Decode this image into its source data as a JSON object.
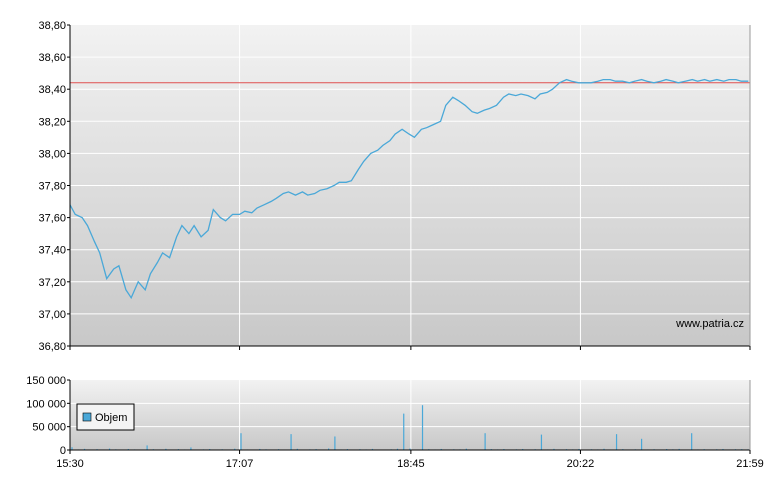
{
  "watermark": "www.patria.cz",
  "colors": {
    "price_line": "#4aa8d8",
    "reference_line": "#e05050",
    "volume_bar": "#4aa8d8",
    "grid": "#ffffff",
    "axis": "#000000",
    "panel_top": "#f2f2f2",
    "panel_bottom": "#c8c8c8"
  },
  "chart_data": [
    {
      "type": "line",
      "title": "",
      "x_tick_labels": [
        "15:30",
        "17:07",
        "18:45",
        "20:22",
        "21:59"
      ],
      "y_tick_labels": [
        "36,80",
        "37,00",
        "37,20",
        "37,40",
        "37,60",
        "37,80",
        "38,00",
        "38,20",
        "38,40",
        "38,60",
        "38,80"
      ],
      "ylim": [
        36.8,
        38.8
      ],
      "grid": true,
      "reference_line": 38.44,
      "series": [
        {
          "x": [
            "15:30",
            "15:33",
            "15:37",
            "15:40",
            "15:44",
            "15:47",
            "15:51",
            "15:55",
            "15:58",
            "16:02",
            "16:05",
            "16:09",
            "16:13",
            "16:16",
            "16:20",
            "16:23",
            "16:27",
            "16:31",
            "16:34",
            "16:38",
            "16:41",
            "16:45",
            "16:49",
            "16:52",
            "16:56",
            "16:59",
            "17:03",
            "17:07",
            "17:10",
            "17:14",
            "17:17",
            "17:21",
            "17:25",
            "17:28",
            "17:32",
            "17:35",
            "17:39",
            "17:43",
            "17:46",
            "17:50",
            "17:53",
            "17:57",
            "18:01",
            "18:04",
            "18:08",
            "18:11",
            "18:15",
            "18:18",
            "18:22",
            "18:26",
            "18:29",
            "18:33",
            "18:36",
            "18:40",
            "18:44",
            "18:47",
            "18:51",
            "18:54",
            "18:58",
            "19:02",
            "19:05",
            "19:09",
            "19:12",
            "19:16",
            "19:20",
            "19:23",
            "19:27",
            "19:30",
            "19:34",
            "19:38",
            "19:41",
            "19:45",
            "19:48",
            "19:52",
            "19:56",
            "19:59",
            "20:03",
            "20:06",
            "20:10",
            "20:14",
            "20:17",
            "20:21",
            "20:24",
            "20:28",
            "20:32",
            "20:35",
            "20:39",
            "20:42",
            "20:46",
            "20:50",
            "20:53",
            "20:57",
            "21:00",
            "21:04",
            "21:08",
            "21:11",
            "21:15",
            "21:18",
            "21:22",
            "21:26",
            "21:29",
            "21:33",
            "21:36",
            "21:40",
            "21:44",
            "21:47",
            "21:51",
            "21:54",
            "21:58"
          ],
          "values": [
            37.68,
            37.62,
            37.6,
            37.55,
            37.45,
            37.38,
            37.22,
            37.28,
            37.3,
            37.15,
            37.1,
            37.2,
            37.15,
            37.25,
            37.32,
            37.38,
            37.35,
            37.48,
            37.55,
            37.5,
            37.55,
            37.48,
            37.52,
            37.65,
            37.6,
            37.58,
            37.62,
            37.62,
            37.64,
            37.63,
            37.66,
            37.68,
            37.7,
            37.72,
            37.75,
            37.76,
            37.74,
            37.76,
            37.74,
            37.75,
            37.77,
            37.78,
            37.8,
            37.82,
            37.82,
            37.83,
            37.9,
            37.95,
            38.0,
            38.02,
            38.05,
            38.08,
            38.12,
            38.15,
            38.12,
            38.1,
            38.15,
            38.16,
            38.18,
            38.2,
            38.3,
            38.35,
            38.33,
            38.3,
            38.26,
            38.25,
            38.27,
            38.28,
            38.3,
            38.35,
            38.37,
            38.36,
            38.37,
            38.36,
            38.34,
            38.37,
            38.38,
            38.4,
            38.44,
            38.46,
            38.45,
            38.44,
            38.44,
            38.44,
            38.45,
            38.46,
            38.46,
            38.45,
            38.45,
            38.44,
            38.45,
            38.46,
            38.45,
            38.44,
            38.45,
            38.46,
            38.45,
            38.44,
            38.45,
            38.46,
            38.45,
            38.46,
            38.45,
            38.46,
            38.45,
            38.46,
            38.46,
            38.45,
            38.45
          ]
        }
      ]
    },
    {
      "type": "bar",
      "title": "",
      "x_tick_labels": [
        "15:30",
        "17:07",
        "18:45",
        "20:22",
        "21:59"
      ],
      "y_tick_labels": [
        "0",
        "50 000",
        "100 000",
        "150 000"
      ],
      "ylim": [
        0,
        150000
      ],
      "grid": true,
      "legend": {
        "entries": [
          "Objem"
        ],
        "placement": "left"
      },
      "series": [
        {
          "name": "Objem",
          "values": [
            6000,
            1200,
            2500,
            900,
            1800,
            700,
            3100,
            1500,
            800,
            2200,
            1300,
            600,
            9800,
            1700,
            1100,
            2600,
            800,
            1900,
            1200,
            5500,
            900,
            1400,
            2100,
            700,
            1600,
            1000,
            2800,
            36000,
            1200,
            900,
            2300,
            1500,
            700,
            1800,
            1100,
            34000,
            2600,
            800,
            1400,
            1900,
            700,
            3300,
            29000,
            1200,
            2000,
            900,
            1700,
            1300,
            2400,
            800,
            1100,
            1500,
            2700,
            78000,
            3200,
            1000,
            96000,
            1800,
            1200,
            2300,
            900,
            1600,
            1400,
            2800,
            1100,
            700,
            36000,
            1900,
            1300,
            2100,
            800,
            1500,
            2200,
            900,
            1700,
            33000,
            1200,
            2500,
            1000,
            1800,
            1400,
            2200,
            900,
            1600,
            1300,
            2700,
            1100,
            34000,
            1900,
            800,
            1500,
            24000,
            1200,
            1700,
            900,
            2100,
            1500,
            2400,
            1000,
            36000,
            1300,
            1800,
            900,
            1600,
            2200,
            1100,
            1700,
            1900,
            1400
          ]
        }
      ]
    }
  ]
}
